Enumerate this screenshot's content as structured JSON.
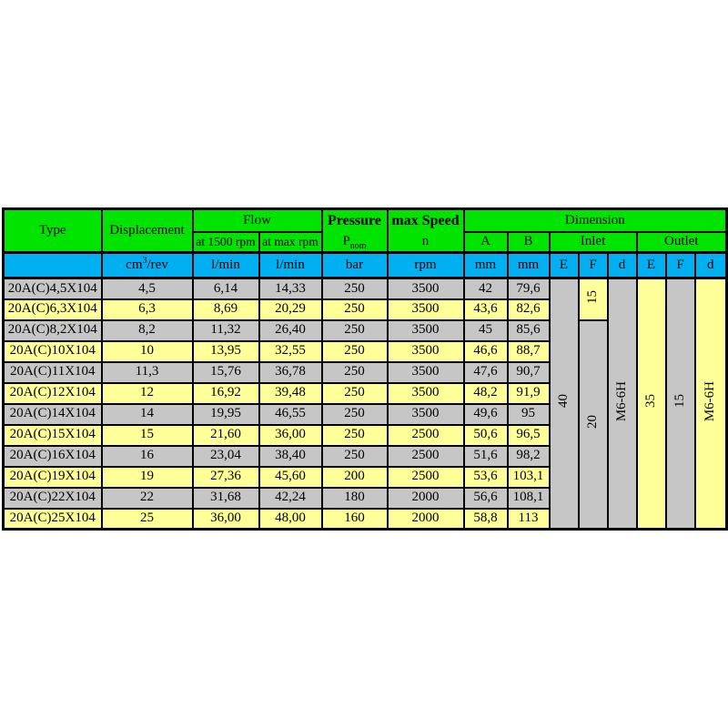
{
  "colors": {
    "header_green": "#00e400",
    "units_cyan": "#00b0f0",
    "row_gray": "#c6c6c6",
    "row_yellow": "#ffff99",
    "border": "#000000",
    "page_bg": "#ffffff"
  },
  "table": {
    "header": {
      "type": "Type",
      "displacement": "Displacement",
      "flow": "Flow",
      "flow_sub1": "at 1500 rpm",
      "flow_sub2": "at max rpm",
      "pressure": "Pressure",
      "pressure_symbol": "P",
      "pressure_symbol_sub": "nom",
      "max_speed": "max Speed",
      "max_speed_symbol": "n",
      "dimension": "Dimension",
      "dim_a": "A",
      "dim_b": "B",
      "inlet": "Inlet",
      "outlet": "Outlet"
    },
    "units": {
      "displacement_base": "cm",
      "displacement_sup": "3",
      "displacement_rest": "/rev",
      "flow1": "l/min",
      "flow2": "l/min",
      "pressure": "bar",
      "speed": "rpm",
      "a": "mm",
      "b": "mm",
      "inlet_e": "E",
      "inlet_f": "F",
      "inlet_d": "d",
      "outlet_e": "E",
      "outlet_f": "F",
      "outlet_d": "d"
    },
    "merged": {
      "inlet_e": "40",
      "inlet_f_top": "15",
      "inlet_f_bottom": "20",
      "inlet_d": "M6-6H",
      "outlet_e": "35",
      "outlet_f": "15",
      "outlet_d": "M6-6H"
    }
  },
  "chart_data": {
    "type": "table",
    "title": "Hydraulic pump specification table",
    "columns": [
      "Type",
      "Displacement cm3/rev",
      "Flow at 1500 rpm l/min",
      "Flow at max rpm l/min",
      "Pressure Pnom bar",
      "max Speed n rpm",
      "A mm",
      "B mm",
      "Inlet E",
      "Inlet F",
      "Inlet d",
      "Outlet E",
      "Outlet F",
      "Outlet d"
    ],
    "rows": [
      [
        "20A(C)4,5X104",
        "4,5",
        "6,14",
        "14,33",
        "250",
        "3500",
        "42",
        "79,6",
        "40",
        "15",
        "M6-6H",
        "35",
        "15",
        "M6-6H"
      ],
      [
        "20A(C)6,3X104",
        "6,3",
        "8,69",
        "20,29",
        "250",
        "3500",
        "43,6",
        "82,6",
        "40",
        "15",
        "M6-6H",
        "35",
        "15",
        "M6-6H"
      ],
      [
        "20A(C)8,2X104",
        "8,2",
        "11,32",
        "26,40",
        "250",
        "3500",
        "45",
        "85,6",
        "40",
        "20",
        "M6-6H",
        "35",
        "15",
        "M6-6H"
      ],
      [
        "20A(C)10X104",
        "10",
        "13,95",
        "32,55",
        "250",
        "3500",
        "46,6",
        "88,7",
        "40",
        "20",
        "M6-6H",
        "35",
        "15",
        "M6-6H"
      ],
      [
        "20A(C)11X104",
        "11,3",
        "15,76",
        "36,78",
        "250",
        "3500",
        "47,6",
        "90,7",
        "40",
        "20",
        "M6-6H",
        "35",
        "15",
        "M6-6H"
      ],
      [
        "20A(C)12X104",
        "12",
        "16,92",
        "39,48",
        "250",
        "3500",
        "48,2",
        "91,9",
        "40",
        "20",
        "M6-6H",
        "35",
        "15",
        "M6-6H"
      ],
      [
        "20A(C)14X104",
        "14",
        "19,95",
        "46,55",
        "250",
        "3500",
        "49,6",
        "95",
        "40",
        "20",
        "M6-6H",
        "35",
        "15",
        "M6-6H"
      ],
      [
        "20A(C)15X104",
        "15",
        "21,60",
        "36,00",
        "250",
        "2500",
        "50,6",
        "96,5",
        "40",
        "20",
        "M6-6H",
        "35",
        "15",
        "M6-6H"
      ],
      [
        "20A(C)16X104",
        "16",
        "23,04",
        "38,40",
        "250",
        "2500",
        "51,6",
        "98,2",
        "40",
        "20",
        "M6-6H",
        "35",
        "15",
        "M6-6H"
      ],
      [
        "20A(C)19X104",
        "19",
        "27,36",
        "45,60",
        "200",
        "2500",
        "53,6",
        "103,1",
        "40",
        "20",
        "M6-6H",
        "35",
        "15",
        "M6-6H"
      ],
      [
        "20A(C)22X104",
        "22",
        "31,68",
        "42,24",
        "180",
        "2000",
        "56,6",
        "108,1",
        "40",
        "20",
        "M6-6H",
        "35",
        "15",
        "M6-6H"
      ],
      [
        "20A(C)25X104",
        "25",
        "36,00",
        "48,00",
        "160",
        "2000",
        "58,8",
        "113",
        "40",
        "20",
        "M6-6H",
        "35",
        "15",
        "M6-6H"
      ]
    ]
  }
}
